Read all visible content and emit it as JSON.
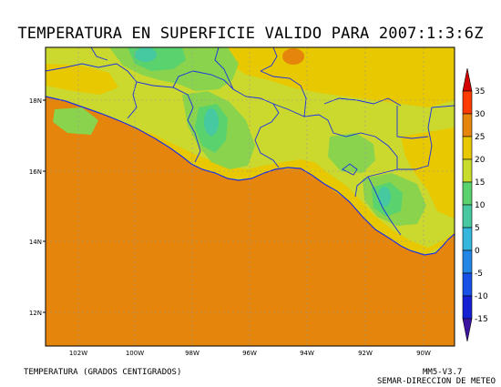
{
  "title": "TEMPERATURA EN SUPERFICIE VALIDO PARA 2007:1:3:6Z",
  "footer": {
    "left": "TEMPERATURA (GRADOS CENTIGRADOS)",
    "model": "MM5-V3.7",
    "agency": "SEMAR-DIRECCION DE METEO"
  },
  "axes": {
    "lat_labels": [
      "18N",
      "16N",
      "14N",
      "12N"
    ],
    "lon_labels": [
      "102W",
      "100W",
      "98W",
      "96W",
      "94W",
      "92W",
      "90W"
    ]
  },
  "colorbar": {
    "ticks": [
      "35",
      "30",
      "25",
      "20",
      "15",
      "10",
      "5",
      "0",
      "-5",
      "-10",
      "-15"
    ],
    "colors": [
      "#d40000",
      "#ff3b00",
      "#e5850b",
      "#e8c800",
      "#c8dc2c",
      "#5ad26e",
      "#46c8a0",
      "#33b7dc",
      "#2286e6",
      "#1950e6",
      "#1420d2",
      "#3c14a0"
    ]
  },
  "colors": {
    "ocean": "#e5850b",
    "land_base": "#cbd92e",
    "land_warm": "#e8c800",
    "land_cool": "#8ad34c",
    "land_cold": "#5ad26e",
    "land_coldest": "#46c8a0",
    "borders": "#1a2fe6"
  }
}
